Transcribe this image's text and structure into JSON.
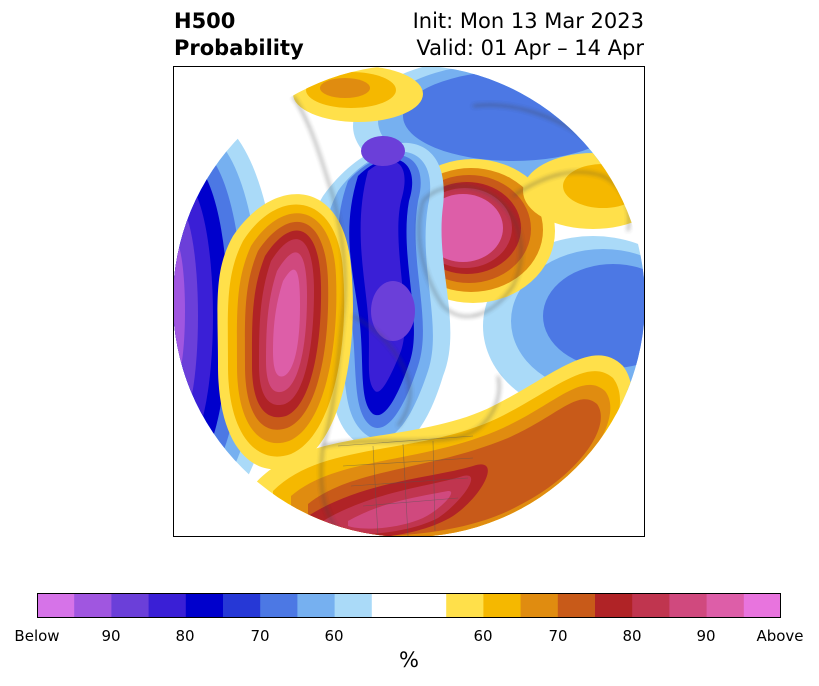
{
  "header": {
    "variable": "H500",
    "product": "Probability",
    "init": "Init: Mon 13 Mar 2023",
    "valid": "Valid: 01 Apr – 14 Apr"
  },
  "map": {
    "projection": "north-polar-stereographic",
    "features": [
      "coastlines",
      "country-borders",
      "state-borders"
    ],
    "anomalies": [
      {
        "region": "western-north-america-pacific",
        "category": "above",
        "max": "Above"
      },
      {
        "region": "greenland",
        "category": "above",
        "max": "Above"
      },
      {
        "region": "southern-united-states-atlantic",
        "category": "above",
        "max": "90"
      },
      {
        "region": "eurasia-arctic-fringe",
        "category": "above",
        "max": "70"
      },
      {
        "region": "central-north-pacific",
        "category": "below",
        "max": "Below"
      },
      {
        "region": "hudson-bay-central-canada",
        "category": "below",
        "max": "Below"
      },
      {
        "region": "western-russia",
        "category": "below",
        "max": "90"
      },
      {
        "region": "eastern-europe-north-atlantic",
        "category": "below",
        "max": "70"
      }
    ]
  },
  "colorbar": {
    "unit": "%",
    "tick_labels": [
      "Below",
      "90",
      "80",
      "70",
      "60",
      "60",
      "70",
      "80",
      "90",
      "Above"
    ],
    "colors": [
      "#d673e8",
      "#a056e0",
      "#6b3fd9",
      "#3a1fd6",
      "#0000cc",
      "#2638d6",
      "#4c78e4",
      "#76b0f0",
      "#aadaf8",
      "#ffffff",
      "#ffffff",
      "#ffe04a",
      "#f5b800",
      "#e08c10",
      "#c85a19",
      "#b02326",
      "#c0354f",
      "#d0497e",
      "#dd5ea8",
      "#e874de"
    ]
  }
}
